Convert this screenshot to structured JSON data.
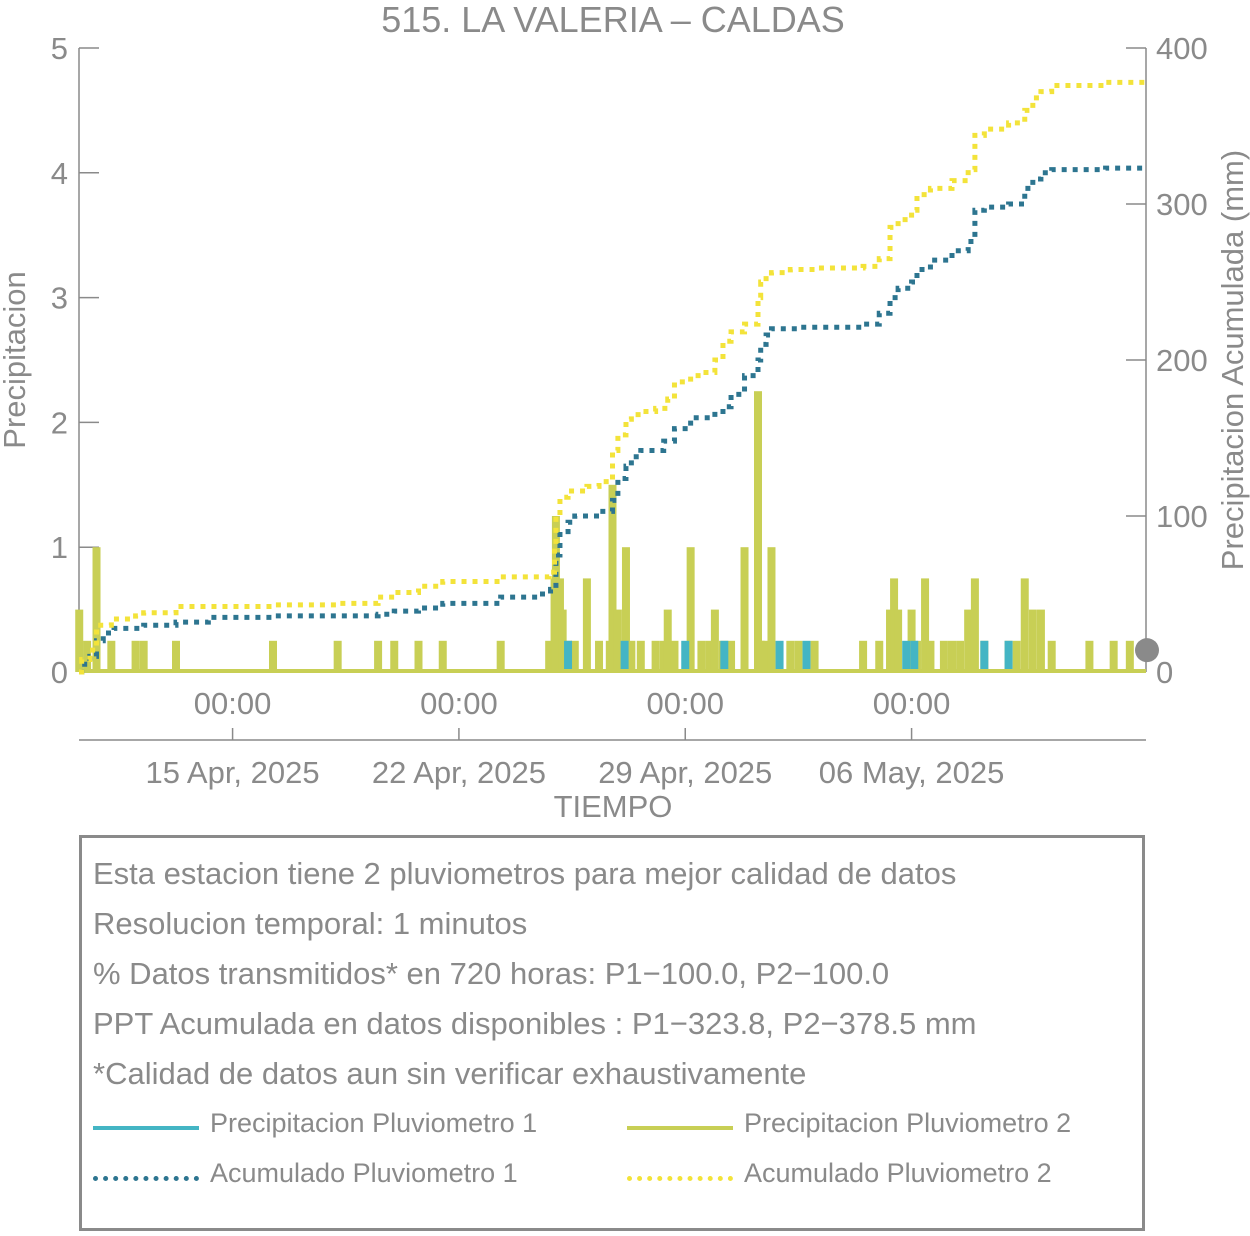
{
  "chart_data": {
    "type": "bar+line",
    "title": "515. LA VALERIA – CALDAS",
    "xlabel": "TIEMPO",
    "ylabel_left": "Precipitacion",
    "ylabel_right": "Precipitacion Acumulada (mm)",
    "x_range": [
      "2025-04-09T06:00",
      "2025-05-12T06:00"
    ],
    "ylim_left": [
      0,
      5
    ],
    "ylim_right": [
      0,
      400
    ],
    "yticks_left": [
      "0",
      "1",
      "2",
      "3",
      "4",
      "5"
    ],
    "yticks_right": [
      "0",
      "100",
      "200",
      "300",
      "400"
    ],
    "xticks_time": [
      {
        "x": "2025-04-14T00:00",
        "label": "00:00"
      },
      {
        "x": "2025-04-21T00:00",
        "label": "00:00"
      },
      {
        "x": "2025-04-28T00:00",
        "label": "00:00"
      },
      {
        "x": "2025-05-05T00:00",
        "label": "00:00"
      }
    ],
    "xticks_date": [
      {
        "x": "2025-04-14T00:00",
        "label": "15 Apr, 2025"
      },
      {
        "x": "2025-04-21T00:00",
        "label": "22 Apr, 2025"
      },
      {
        "x": "2025-04-28T00:00",
        "label": "29 Apr, 2025"
      },
      {
        "x": "2025-05-05T00:00",
        "label": "06 May, 2025"
      }
    ],
    "grid": false,
    "series": [
      {
        "name": "Precipitacion Pluviometro 2",
        "kind": "bar",
        "axis": "left",
        "color": "#c8cf55",
        "points": [
          [
            "2025-04-09T06:10",
            0.5
          ],
          [
            "2025-04-09T12:00",
            0.25
          ],
          [
            "2025-04-09T19:00",
            1.0
          ],
          [
            "2025-04-10T06:00",
            0.25
          ],
          [
            "2025-04-11T00:00",
            0.25
          ],
          [
            "2025-04-11T06:00",
            0.25
          ],
          [
            "2025-04-12T06:00",
            0.25
          ],
          [
            "2025-04-15T06:00",
            0.25
          ],
          [
            "2025-04-17T06:00",
            0.25
          ],
          [
            "2025-04-18T12:00",
            0.25
          ],
          [
            "2025-04-19T00:00",
            0.25
          ],
          [
            "2025-04-19T18:00",
            0.25
          ],
          [
            "2025-04-20T12:00",
            0.25
          ],
          [
            "2025-04-22T07:00",
            0.25
          ],
          [
            "2025-04-23T19:00",
            0.25
          ],
          [
            "2025-04-23T23:00",
            0.75
          ],
          [
            "2025-04-24T00:00",
            1.25
          ],
          [
            "2025-04-24T03:00",
            0.75
          ],
          [
            "2025-04-24T05:00",
            0.5
          ],
          [
            "2025-04-24T09:00",
            0.25
          ],
          [
            "2025-04-24T14:00",
            0.25
          ],
          [
            "2025-04-24T23:00",
            0.75
          ],
          [
            "2025-04-25T08:00",
            0.25
          ],
          [
            "2025-04-25T16:00",
            0.25
          ],
          [
            "2025-04-25T18:00",
            1.5
          ],
          [
            "2025-04-25T22:00",
            0.5
          ],
          [
            "2025-04-26T04:00",
            1.0
          ],
          [
            "2025-04-26T08:00",
            0.25
          ],
          [
            "2025-04-26T15:00",
            0.25
          ],
          [
            "2025-04-27T02:00",
            0.25
          ],
          [
            "2025-04-27T08:00",
            0.25
          ],
          [
            "2025-04-27T11:00",
            0.5
          ],
          [
            "2025-04-27T16:00",
            0.25
          ],
          [
            "2025-04-28T04:00",
            1.0
          ],
          [
            "2025-04-28T12:00",
            0.25
          ],
          [
            "2025-04-28T18:00",
            0.25
          ],
          [
            "2025-04-28T22:00",
            0.5
          ],
          [
            "2025-04-29T04:00",
            0.25
          ],
          [
            "2025-04-29T10:00",
            0.25
          ],
          [
            "2025-04-29T20:00",
            1.0
          ],
          [
            "2025-04-30T06:00",
            2.25
          ],
          [
            "2025-04-30T08:00",
            0.25
          ],
          [
            "2025-04-30T12:00",
            0.25
          ],
          [
            "2025-04-30T16:00",
            1.0
          ],
          [
            "2025-05-01T06:00",
            0.25
          ],
          [
            "2025-05-01T12:00",
            0.25
          ],
          [
            "2025-05-02T00:00",
            0.25
          ],
          [
            "2025-05-03T12:00",
            0.25
          ],
          [
            "2025-05-04T00:00",
            0.25
          ],
          [
            "2025-05-04T08:00",
            0.5
          ],
          [
            "2025-05-04T11:00",
            0.75
          ],
          [
            "2025-05-04T14:00",
            0.5
          ],
          [
            "2025-05-05T00:00",
            0.5
          ],
          [
            "2025-05-05T04:00",
            0.25
          ],
          [
            "2025-05-05T10:00",
            0.75
          ],
          [
            "2025-05-05T14:00",
            0.25
          ],
          [
            "2025-05-06T00:00",
            0.25
          ],
          [
            "2025-05-06T06:00",
            0.25
          ],
          [
            "2025-05-06T12:00",
            0.25
          ],
          [
            "2025-05-06T18:00",
            0.5
          ],
          [
            "2025-05-06T23:00",
            0.75
          ],
          [
            "2025-05-07T06:00",
            0.25
          ],
          [
            "2025-05-08T00:00",
            0.25
          ],
          [
            "2025-05-08T06:00",
            0.25
          ],
          [
            "2025-05-08T12:00",
            0.75
          ],
          [
            "2025-05-08T18:00",
            0.5
          ],
          [
            "2025-05-09T00:00",
            0.5
          ],
          [
            "2025-05-09T08:00",
            0.25
          ],
          [
            "2025-05-10T12:00",
            0.25
          ],
          [
            "2025-05-11T06:00",
            0.25
          ],
          [
            "2025-05-11T18:00",
            0.25
          ]
        ]
      },
      {
        "name": "Precipitacion Pluviometro 1",
        "kind": "bar",
        "axis": "left",
        "color": "#44b5c4",
        "points": [
          [
            "2025-04-24T09:00",
            0.25
          ],
          [
            "2025-04-26T03:00",
            0.25
          ],
          [
            "2025-04-28T00:00",
            0.25
          ],
          [
            "2025-04-29T05:00",
            0.25
          ],
          [
            "2025-04-30T22:00",
            0.25
          ],
          [
            "2025-05-01T18:00",
            0.25
          ],
          [
            "2025-05-04T20:00",
            0.25
          ],
          [
            "2025-05-05T02:00",
            0.25
          ],
          [
            "2025-05-07T06:00",
            0.25
          ],
          [
            "2025-05-08T00:00",
            0.25
          ]
        ]
      },
      {
        "name": "Acumulado Pluviometro 1",
        "kind": "line",
        "style": "dotted",
        "axis": "right",
        "color": "#2d7590",
        "points": [
          [
            "2025-04-09T06:00",
            0
          ],
          [
            "2025-04-09T08:00",
            5
          ],
          [
            "2025-04-09T14:00",
            10
          ],
          [
            "2025-04-09T19:00",
            20
          ],
          [
            "2025-04-10T00:00",
            25
          ],
          [
            "2025-04-10T08:00",
            28
          ],
          [
            "2025-04-11T06:00",
            30
          ],
          [
            "2025-04-12T06:00",
            32
          ],
          [
            "2025-04-13T06:00",
            35
          ],
          [
            "2025-04-15T06:00",
            36
          ],
          [
            "2025-04-18T12:00",
            37
          ],
          [
            "2025-04-19T00:00",
            39
          ],
          [
            "2025-04-19T18:00",
            41
          ],
          [
            "2025-04-20T12:00",
            44
          ],
          [
            "2025-04-22T07:00",
            48
          ],
          [
            "2025-04-23T12:00",
            50
          ],
          [
            "2025-04-23T20:00",
            53
          ],
          [
            "2025-04-24T00:00",
            75
          ],
          [
            "2025-04-24T03:00",
            90
          ],
          [
            "2025-04-24T09:00",
            96
          ],
          [
            "2025-04-24T14:00",
            100
          ],
          [
            "2025-04-25T08:00",
            103
          ],
          [
            "2025-04-25T18:00",
            110
          ],
          [
            "2025-04-25T22:00",
            124
          ],
          [
            "2025-04-26T04:00",
            132
          ],
          [
            "2025-04-26T08:00",
            138
          ],
          [
            "2025-04-26T15:00",
            142
          ],
          [
            "2025-04-27T08:00",
            148
          ],
          [
            "2025-04-27T16:00",
            156
          ],
          [
            "2025-04-28T04:00",
            163
          ],
          [
            "2025-04-28T22:00",
            167
          ],
          [
            "2025-04-29T04:00",
            170
          ],
          [
            "2025-04-29T10:00",
            178
          ],
          [
            "2025-04-29T20:00",
            190
          ],
          [
            "2025-04-30T06:00",
            200
          ],
          [
            "2025-04-30T08:00",
            210
          ],
          [
            "2025-04-30T12:00",
            216
          ],
          [
            "2025-04-30T16:00",
            220
          ],
          [
            "2025-05-01T12:00",
            221
          ],
          [
            "2025-05-02T06:00",
            221
          ],
          [
            "2025-05-03T12:00",
            223
          ],
          [
            "2025-05-04T00:00",
            230
          ],
          [
            "2025-05-04T08:00",
            240
          ],
          [
            "2025-05-04T14:00",
            246
          ],
          [
            "2025-05-05T00:00",
            250
          ],
          [
            "2025-05-05T04:00",
            258
          ],
          [
            "2025-05-05T14:00",
            264
          ],
          [
            "2025-05-06T06:00",
            270
          ],
          [
            "2025-05-06T18:00",
            276
          ],
          [
            "2025-05-06T23:00",
            296
          ],
          [
            "2025-05-07T06:00",
            298
          ],
          [
            "2025-05-08T00:00",
            300
          ],
          [
            "2025-05-08T12:00",
            310
          ],
          [
            "2025-05-08T18:00",
            316
          ],
          [
            "2025-05-09T00:00",
            320
          ],
          [
            "2025-05-09T08:00",
            322
          ],
          [
            "2025-05-11T00:00",
            323
          ],
          [
            "2025-05-12T06:00",
            323.8
          ]
        ]
      },
      {
        "name": "Acumulado Pluviometro 2",
        "kind": "line",
        "style": "dotted",
        "axis": "right",
        "color": "#f3e33a",
        "points": [
          [
            "2025-04-09T06:00",
            0
          ],
          [
            "2025-04-09T08:00",
            8
          ],
          [
            "2025-04-09T14:00",
            14
          ],
          [
            "2025-04-09T19:00",
            30
          ],
          [
            "2025-04-10T06:00",
            34
          ],
          [
            "2025-04-11T00:00",
            36
          ],
          [
            "2025-04-11T06:00",
            38
          ],
          [
            "2025-04-12T06:00",
            42
          ],
          [
            "2025-04-15T06:00",
            43
          ],
          [
            "2025-04-17T06:00",
            44
          ],
          [
            "2025-04-18T12:00",
            48
          ],
          [
            "2025-04-19T00:00",
            51
          ],
          [
            "2025-04-19T18:00",
            55
          ],
          [
            "2025-04-20T12:00",
            58
          ],
          [
            "2025-04-22T07:00",
            61
          ],
          [
            "2025-04-23T19:00",
            64
          ],
          [
            "2025-04-23T23:00",
            80
          ],
          [
            "2025-04-24T00:00",
            100
          ],
          [
            "2025-04-24T03:00",
            112
          ],
          [
            "2025-04-24T09:00",
            116
          ],
          [
            "2025-04-24T23:00",
            119
          ],
          [
            "2025-04-25T08:00",
            122
          ],
          [
            "2025-04-25T18:00",
            142
          ],
          [
            "2025-04-25T22:00",
            152
          ],
          [
            "2025-04-26T04:00",
            162
          ],
          [
            "2025-04-26T08:00",
            165
          ],
          [
            "2025-04-26T15:00",
            167
          ],
          [
            "2025-04-27T02:00",
            169
          ],
          [
            "2025-04-27T11:00",
            175
          ],
          [
            "2025-04-27T16:00",
            186
          ],
          [
            "2025-04-28T04:00",
            190
          ],
          [
            "2025-04-28T12:00",
            192
          ],
          [
            "2025-04-28T22:00",
            200
          ],
          [
            "2025-04-29T04:00",
            212
          ],
          [
            "2025-04-29T10:00",
            218
          ],
          [
            "2025-04-29T20:00",
            223
          ],
          [
            "2025-04-30T06:00",
            240
          ],
          [
            "2025-04-30T08:00",
            250
          ],
          [
            "2025-04-30T12:00",
            254
          ],
          [
            "2025-04-30T16:00",
            256
          ],
          [
            "2025-05-01T06:00",
            258
          ],
          [
            "2025-05-02T00:00",
            259
          ],
          [
            "2025-05-03T12:00",
            260
          ],
          [
            "2025-05-04T00:00",
            265
          ],
          [
            "2025-05-04T08:00",
            285
          ],
          [
            "2025-05-04T14:00",
            290
          ],
          [
            "2025-05-05T00:00",
            296
          ],
          [
            "2025-05-05T04:00",
            306
          ],
          [
            "2025-05-05T14:00",
            310
          ],
          [
            "2025-05-06T06:00",
            315
          ],
          [
            "2025-05-06T18:00",
            322
          ],
          [
            "2025-05-06T23:00",
            344
          ],
          [
            "2025-05-07T06:00",
            348
          ],
          [
            "2025-05-08T00:00",
            352
          ],
          [
            "2025-05-08T12:00",
            360
          ],
          [
            "2025-05-08T18:00",
            368
          ],
          [
            "2025-05-09T00:00",
            372
          ],
          [
            "2025-05-09T08:00",
            376
          ],
          [
            "2025-05-11T00:00",
            378
          ],
          [
            "2025-05-12T06:00",
            378.5
          ]
        ]
      }
    ],
    "marker_right_axis": {
      "value": 14,
      "color": "#8a8a8a"
    }
  },
  "info": {
    "lines": [
      "Esta estacion tiene 2 pluviometros para mejor calidad de datos",
      "Resolucion temporal: 1 minutos",
      "% Datos transmitidos* en 720 horas: P1−100.0, P2−100.0",
      "PPT Acumulada en datos disponibles : P1−323.8, P2−378.5 mm",
      "*Calidad de datos aun sin verificar exhaustivamente"
    ]
  },
  "legend": [
    {
      "label": "Precipitacion Pluviometro 1",
      "color": "#44b5c4",
      "style": "solid"
    },
    {
      "label": "Precipitacion Pluviometro 2",
      "color": "#c8cf55",
      "style": "solid"
    },
    {
      "label": "Acumulado Pluviometro 1",
      "color": "#2d7590",
      "style": "dotted"
    },
    {
      "label": "Acumulado Pluviometro 2",
      "color": "#f3e33a",
      "style": "dotted"
    }
  ]
}
